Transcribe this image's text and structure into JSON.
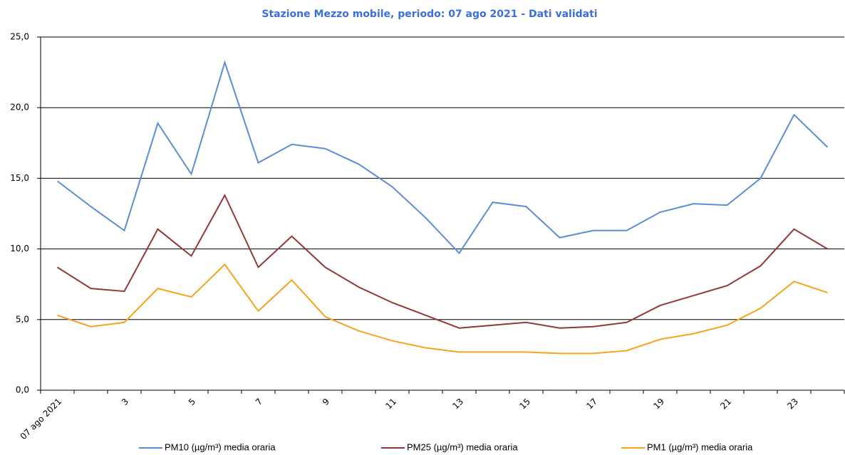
{
  "chart_data": {
    "type": "line",
    "title": "Stazione Mezzo mobile, periodo: 07 ago 2021 - Dati validati",
    "categories": [
      "07 ago 2021",
      null,
      "3",
      null,
      "5",
      null,
      "7",
      null,
      "9",
      null,
      "11",
      null,
      "13",
      null,
      "15",
      null,
      "17",
      null,
      "19",
      null,
      "21",
      null,
      "23",
      null
    ],
    "series": [
      {
        "name": "PM10 (µg/m³) media oraria",
        "color": "#5b8ed6",
        "values": [
          14.8,
          13.0,
          11.3,
          18.9,
          15.3,
          23.2,
          16.1,
          17.4,
          17.1,
          16.0,
          14.4,
          12.2,
          9.7,
          13.3,
          13.0,
          10.8,
          11.3,
          11.3,
          12.6,
          13.2,
          13.1,
          15.0,
          19.5,
          17.2
        ]
      },
      {
        "name": "PM25 (µg/m³) media oraria",
        "color": "#953735",
        "values": [
          8.7,
          7.2,
          7.0,
          11.4,
          9.5,
          13.8,
          8.7,
          10.9,
          8.7,
          7.3,
          6.2,
          5.3,
          4.4,
          4.6,
          4.8,
          4.4,
          4.5,
          4.8,
          6.0,
          6.7,
          7.4,
          8.8,
          11.4,
          10.0
        ]
      },
      {
        "name": "PM1 (µg/m³) media oraria",
        "color": "#f9a11b",
        "values": [
          5.3,
          4.5,
          4.8,
          7.2,
          6.6,
          8.9,
          5.6,
          7.8,
          5.2,
          4.2,
          3.5,
          3.0,
          2.7,
          2.7,
          2.7,
          2.6,
          2.6,
          2.8,
          3.6,
          4.0,
          4.6,
          5.8,
          7.7,
          6.9
        ]
      }
    ],
    "ylim": [
      0,
      25
    ],
    "yticks": [
      {
        "value": 0,
        "label": "0,0"
      },
      {
        "value": 5,
        "label": "5,0"
      },
      {
        "value": 10,
        "label": "10,0"
      },
      {
        "value": 15,
        "label": "15,0"
      },
      {
        "value": 20,
        "label": "20,0"
      },
      {
        "value": 25,
        "label": "25,0"
      }
    ],
    "grid": true
  }
}
